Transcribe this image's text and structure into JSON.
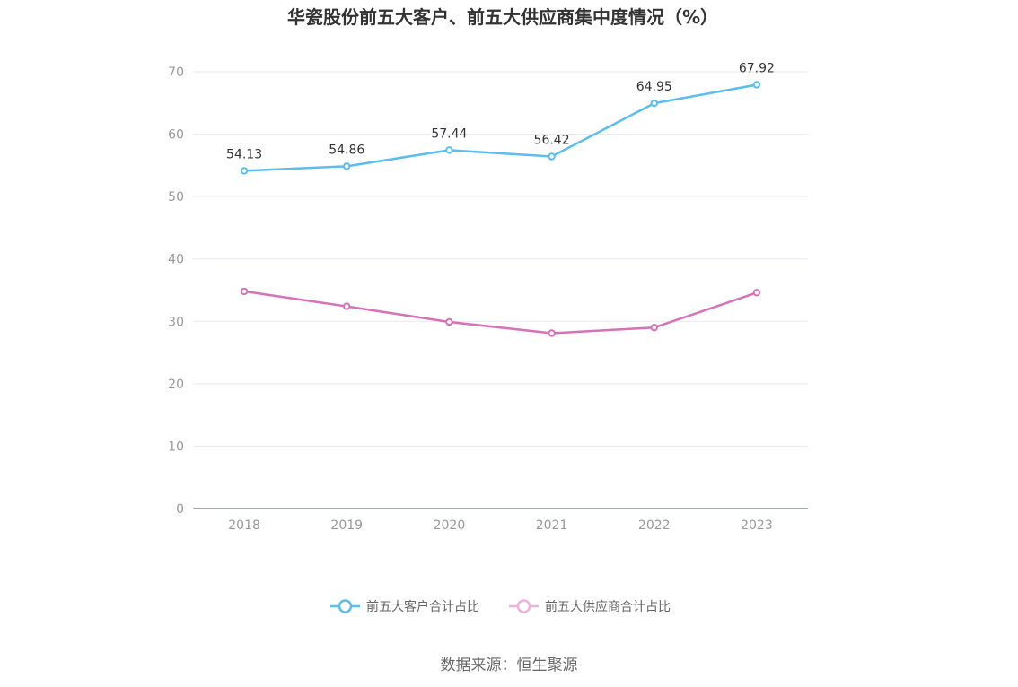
{
  "chart_data": {
    "type": "line",
    "title": "华瓷股份前五大客户、前五大供应商集中度情况（%）",
    "categories": [
      "2018",
      "2019",
      "2020",
      "2021",
      "2022",
      "2023"
    ],
    "ylim": [
      0,
      70
    ],
    "yticks": [
      0,
      10,
      20,
      30,
      40,
      50,
      60,
      70
    ],
    "grid": true,
    "legend_position": "bottom",
    "series": [
      {
        "name": "前五大客户合计占比",
        "color": "#5bbdee",
        "values": [
          54.13,
          54.86,
          57.44,
          56.42,
          64.95,
          67.92
        ],
        "show_labels": true
      },
      {
        "name": "前五大供应商合计占比",
        "color": "#d672b8",
        "legend_color": "#eab3da",
        "values": [
          34.8,
          32.4,
          29.9,
          28.1,
          29.0,
          34.6
        ],
        "show_labels": false
      }
    ],
    "source": "数据来源：恒生聚源"
  }
}
